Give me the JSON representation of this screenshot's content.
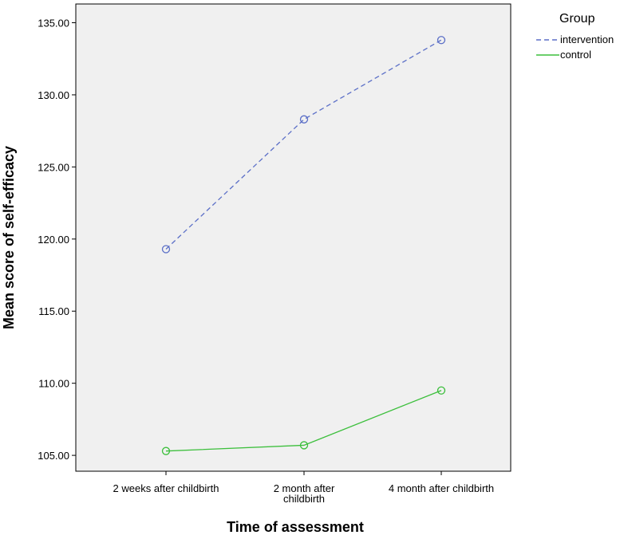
{
  "chart_data": {
    "type": "line",
    "title": "",
    "xlabel": "Time of assessment",
    "ylabel": "Mean score of self-efficacy",
    "categories": [
      [
        "2 weeks after childbirth"
      ],
      [
        "2 month after",
        "childbirth"
      ],
      [
        "4 month after childbirth"
      ]
    ],
    "ylim": [
      103.9,
      136.3
    ],
    "yticks": [
      105,
      110,
      115,
      120,
      125,
      130,
      135
    ],
    "ytick_labels": [
      "105.00",
      "110.00",
      "115.00",
      "120.00",
      "125.00",
      "130.00",
      "135.00"
    ],
    "grid": false,
    "legend": {
      "title": "Group",
      "placement": "top-right-outside"
    },
    "series": [
      {
        "name": "intervention",
        "values": [
          119.3,
          128.3,
          133.8
        ],
        "color": "#5b6fc7",
        "dash": "dashed"
      },
      {
        "name": "control",
        "values": [
          105.3,
          105.7,
          109.5
        ],
        "color": "#3cbf3c",
        "dash": "solid"
      }
    ],
    "plot_background": "#f0f0f0"
  }
}
